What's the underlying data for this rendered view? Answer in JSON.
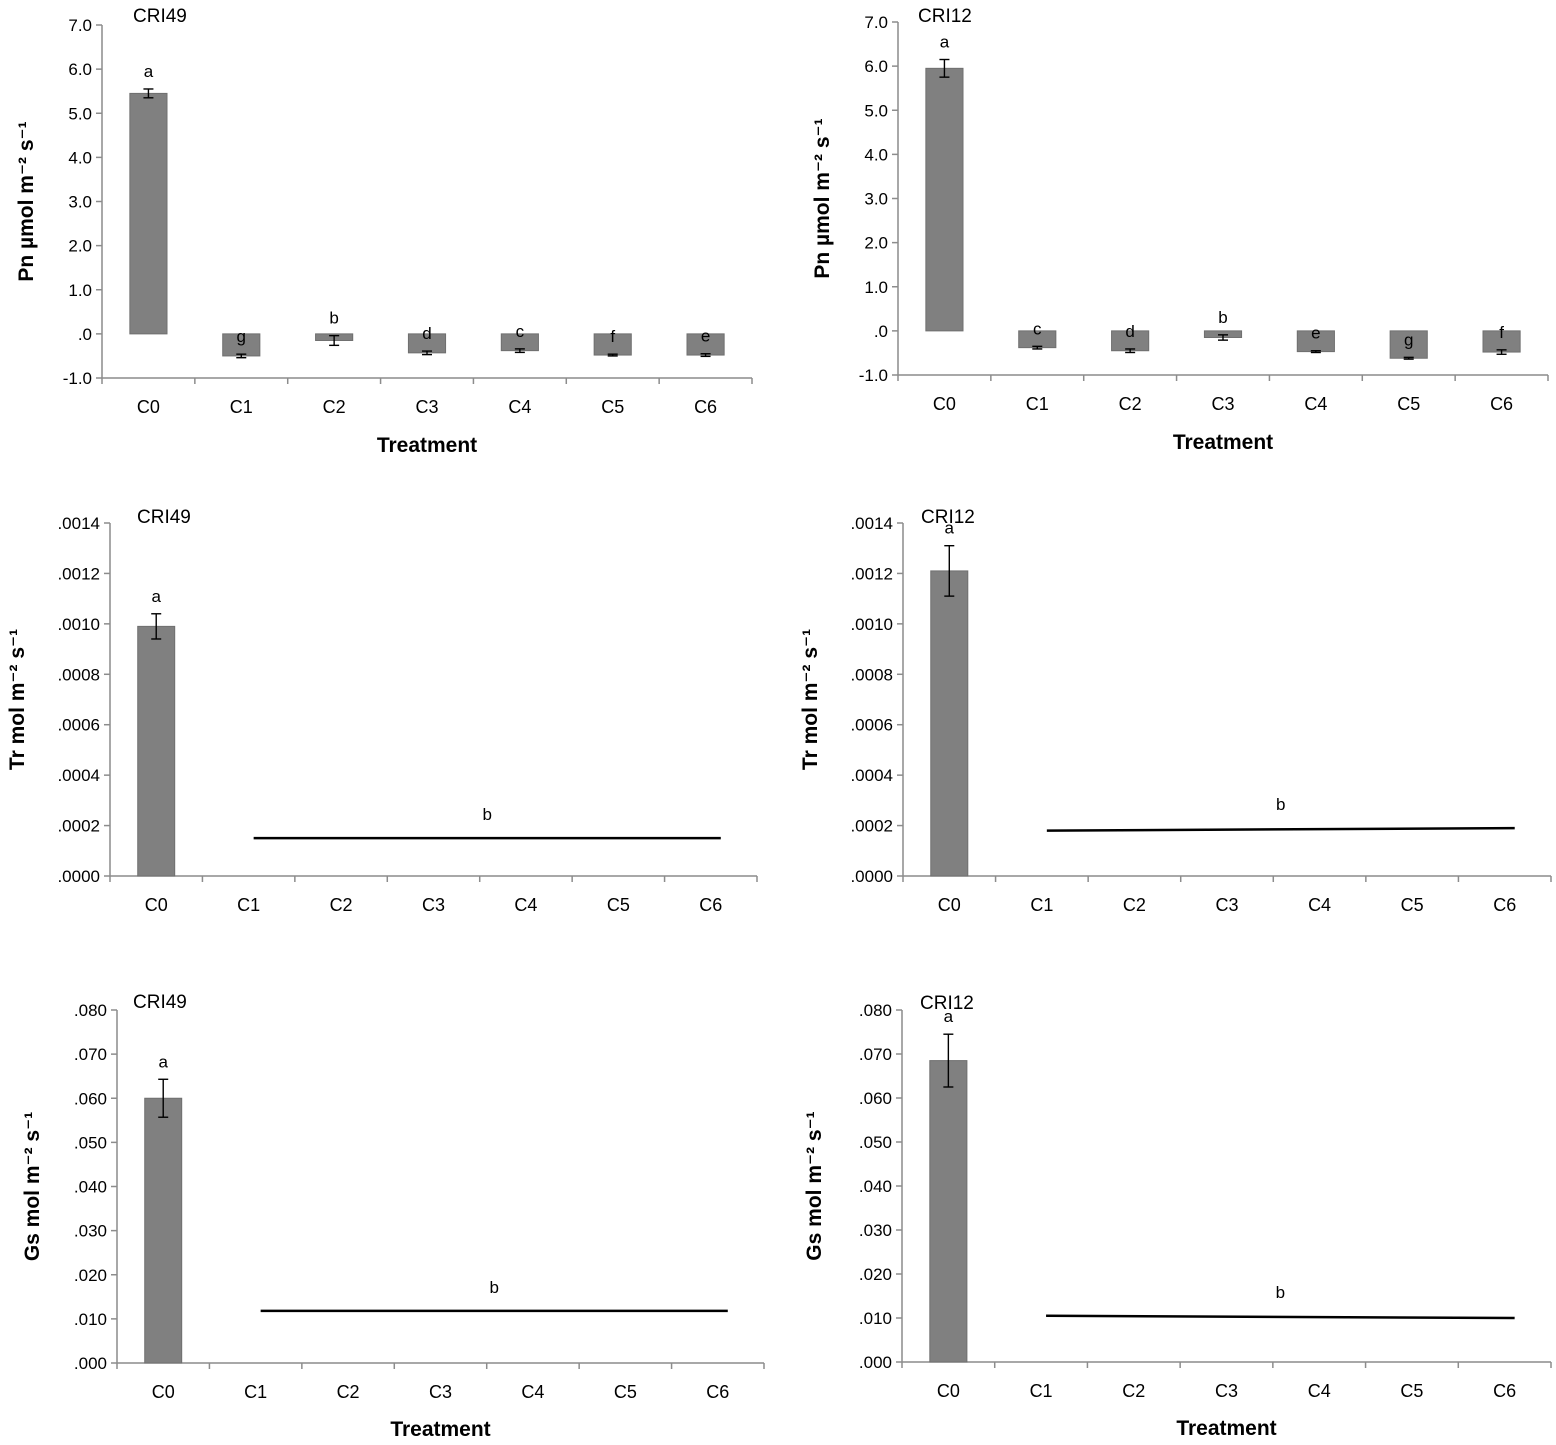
{
  "colors": {
    "bar": "#808080",
    "bar_edge": "#6f6f6f",
    "axis": "#8c8c8c",
    "text": "#000000",
    "line": "#000000"
  },
  "chart_data": [
    {
      "type": "bar",
      "title": "CRI49",
      "ylabel": "Pn µmol m⁻² s⁻¹",
      "xlabel": "Treatment",
      "categories": [
        "C0",
        "C1",
        "C2",
        "C3",
        "C4",
        "C5",
        "C6"
      ],
      "values": [
        5.45,
        -0.5,
        -0.15,
        -0.43,
        -0.38,
        -0.48,
        -0.48
      ],
      "errors": [
        0.1,
        0.04,
        0.11,
        0.04,
        0.04,
        0.02,
        0.03
      ],
      "letters": [
        "a",
        "g",
        "b",
        "d",
        "c",
        "f",
        "e"
      ],
      "ylim": [
        -1.0,
        7.0
      ],
      "yticks": [
        -1.0,
        0.0,
        1.0,
        2.0,
        3.0,
        4.0,
        5.0,
        6.0,
        7.0
      ],
      "ytick_labels": [
        "-1.0",
        ".0",
        "1.0",
        "2.0",
        "3.0",
        "4.0",
        "5.0",
        "6.0",
        "7.0"
      ]
    },
    {
      "type": "bar",
      "title": "CRI12",
      "ylabel": "Pn µmol m⁻² s⁻¹",
      "xlabel": "Treatment",
      "categories": [
        "C0",
        "C1",
        "C2",
        "C3",
        "C4",
        "C5",
        "C6"
      ],
      "values": [
        5.95,
        -0.38,
        -0.45,
        -0.15,
        -0.47,
        -0.62,
        -0.48
      ],
      "errors": [
        0.2,
        0.03,
        0.04,
        0.06,
        0.02,
        0.02,
        0.05
      ],
      "letters": [
        "a",
        "c",
        "d",
        "b",
        "e",
        "g",
        "f"
      ],
      "ylim": [
        -1.0,
        7.0
      ],
      "yticks": [
        -1.0,
        0.0,
        1.0,
        2.0,
        3.0,
        4.0,
        5.0,
        6.0,
        7.0
      ],
      "ytick_labels": [
        "-1.0",
        ".0",
        "1.0",
        "2.0",
        "3.0",
        "4.0",
        "5.0",
        "6.0",
        "7.0"
      ]
    },
    {
      "type": "bar",
      "title": "CRI49",
      "ylabel": "Tr mol m⁻² s⁻¹",
      "xlabel": "",
      "categories": [
        "C0",
        "C1",
        "C2",
        "C3",
        "C4",
        "C5",
        "C6"
      ],
      "values": [
        0.00099,
        null,
        null,
        null,
        null,
        null,
        null
      ],
      "errors": [
        5e-05,
        null,
        null,
        null,
        null,
        null,
        null
      ],
      "letters": [
        "a"
      ],
      "group_line": {
        "from": "C1",
        "to": "C6",
        "y_start": 0.00015,
        "y_end": 0.00015,
        "letter": "b"
      },
      "ylim": [
        0,
        0.0014
      ],
      "yticks": [
        0,
        0.0002,
        0.0004,
        0.0006,
        0.0008,
        0.001,
        0.0012,
        0.0014
      ],
      "ytick_labels": [
        ".0000",
        ".0002",
        ".0004",
        ".0006",
        ".0008",
        ".0010",
        ".0012",
        ".0014"
      ]
    },
    {
      "type": "bar",
      "title": "CRI12",
      "ylabel": "Tr mol m⁻² s⁻¹",
      "xlabel": "",
      "categories": [
        "C0",
        "C1",
        "C2",
        "C3",
        "C4",
        "C5",
        "C6"
      ],
      "values": [
        0.00121,
        null,
        null,
        null,
        null,
        null,
        null
      ],
      "errors": [
        0.0001,
        null,
        null,
        null,
        null,
        null,
        null
      ],
      "letters": [
        "a"
      ],
      "group_line": {
        "from": "C1",
        "to": "C6",
        "y_start": 0.00018,
        "y_end": 0.00019,
        "letter": "b"
      },
      "ylim": [
        0,
        0.0014
      ],
      "yticks": [
        0,
        0.0002,
        0.0004,
        0.0006,
        0.0008,
        0.001,
        0.0012,
        0.0014
      ],
      "ytick_labels": [
        ".0000",
        ".0002",
        ".0004",
        ".0006",
        ".0008",
        ".0010",
        ".0012",
        ".0014"
      ]
    },
    {
      "type": "bar",
      "title": "CRI49",
      "ylabel": "Gs mol m⁻² s⁻¹",
      "xlabel": "Treatment",
      "categories": [
        "C0",
        "C1",
        "C2",
        "C3",
        "C4",
        "C5",
        "C6"
      ],
      "values": [
        0.06,
        null,
        null,
        null,
        null,
        null,
        null
      ],
      "errors": [
        0.0043,
        null,
        null,
        null,
        null,
        null,
        null
      ],
      "letters": [
        "a"
      ],
      "group_line": {
        "from": "C1",
        "to": "C6",
        "y_start": 0.0118,
        "y_end": 0.0118,
        "letter": "b"
      },
      "ylim": [
        0,
        0.08
      ],
      "yticks": [
        0,
        0.01,
        0.02,
        0.03,
        0.04,
        0.05,
        0.06,
        0.07,
        0.08
      ],
      "ytick_labels": [
        ".000",
        ".010",
        ".020",
        ".030",
        ".040",
        ".050",
        ".060",
        ".070",
        ".080"
      ]
    },
    {
      "type": "bar",
      "title": "CRI12",
      "ylabel": "Gs mol m⁻² s⁻¹",
      "xlabel": "Treatment",
      "categories": [
        "C0",
        "C1",
        "C2",
        "C3",
        "C4",
        "C5",
        "C6"
      ],
      "values": [
        0.0685,
        null,
        null,
        null,
        null,
        null,
        null
      ],
      "errors": [
        0.006,
        null,
        null,
        null,
        null,
        null,
        null
      ],
      "letters": [
        "a"
      ],
      "group_line": {
        "from": "C1",
        "to": "C6",
        "y_start": 0.0105,
        "y_end": 0.01,
        "letter": "b"
      },
      "ylim": [
        0,
        0.08
      ],
      "yticks": [
        0,
        0.01,
        0.02,
        0.03,
        0.04,
        0.05,
        0.06,
        0.07,
        0.08
      ],
      "ytick_labels": [
        ".000",
        ".010",
        ".020",
        ".030",
        ".040",
        ".050",
        ".060",
        ".070",
        ".080"
      ]
    }
  ]
}
